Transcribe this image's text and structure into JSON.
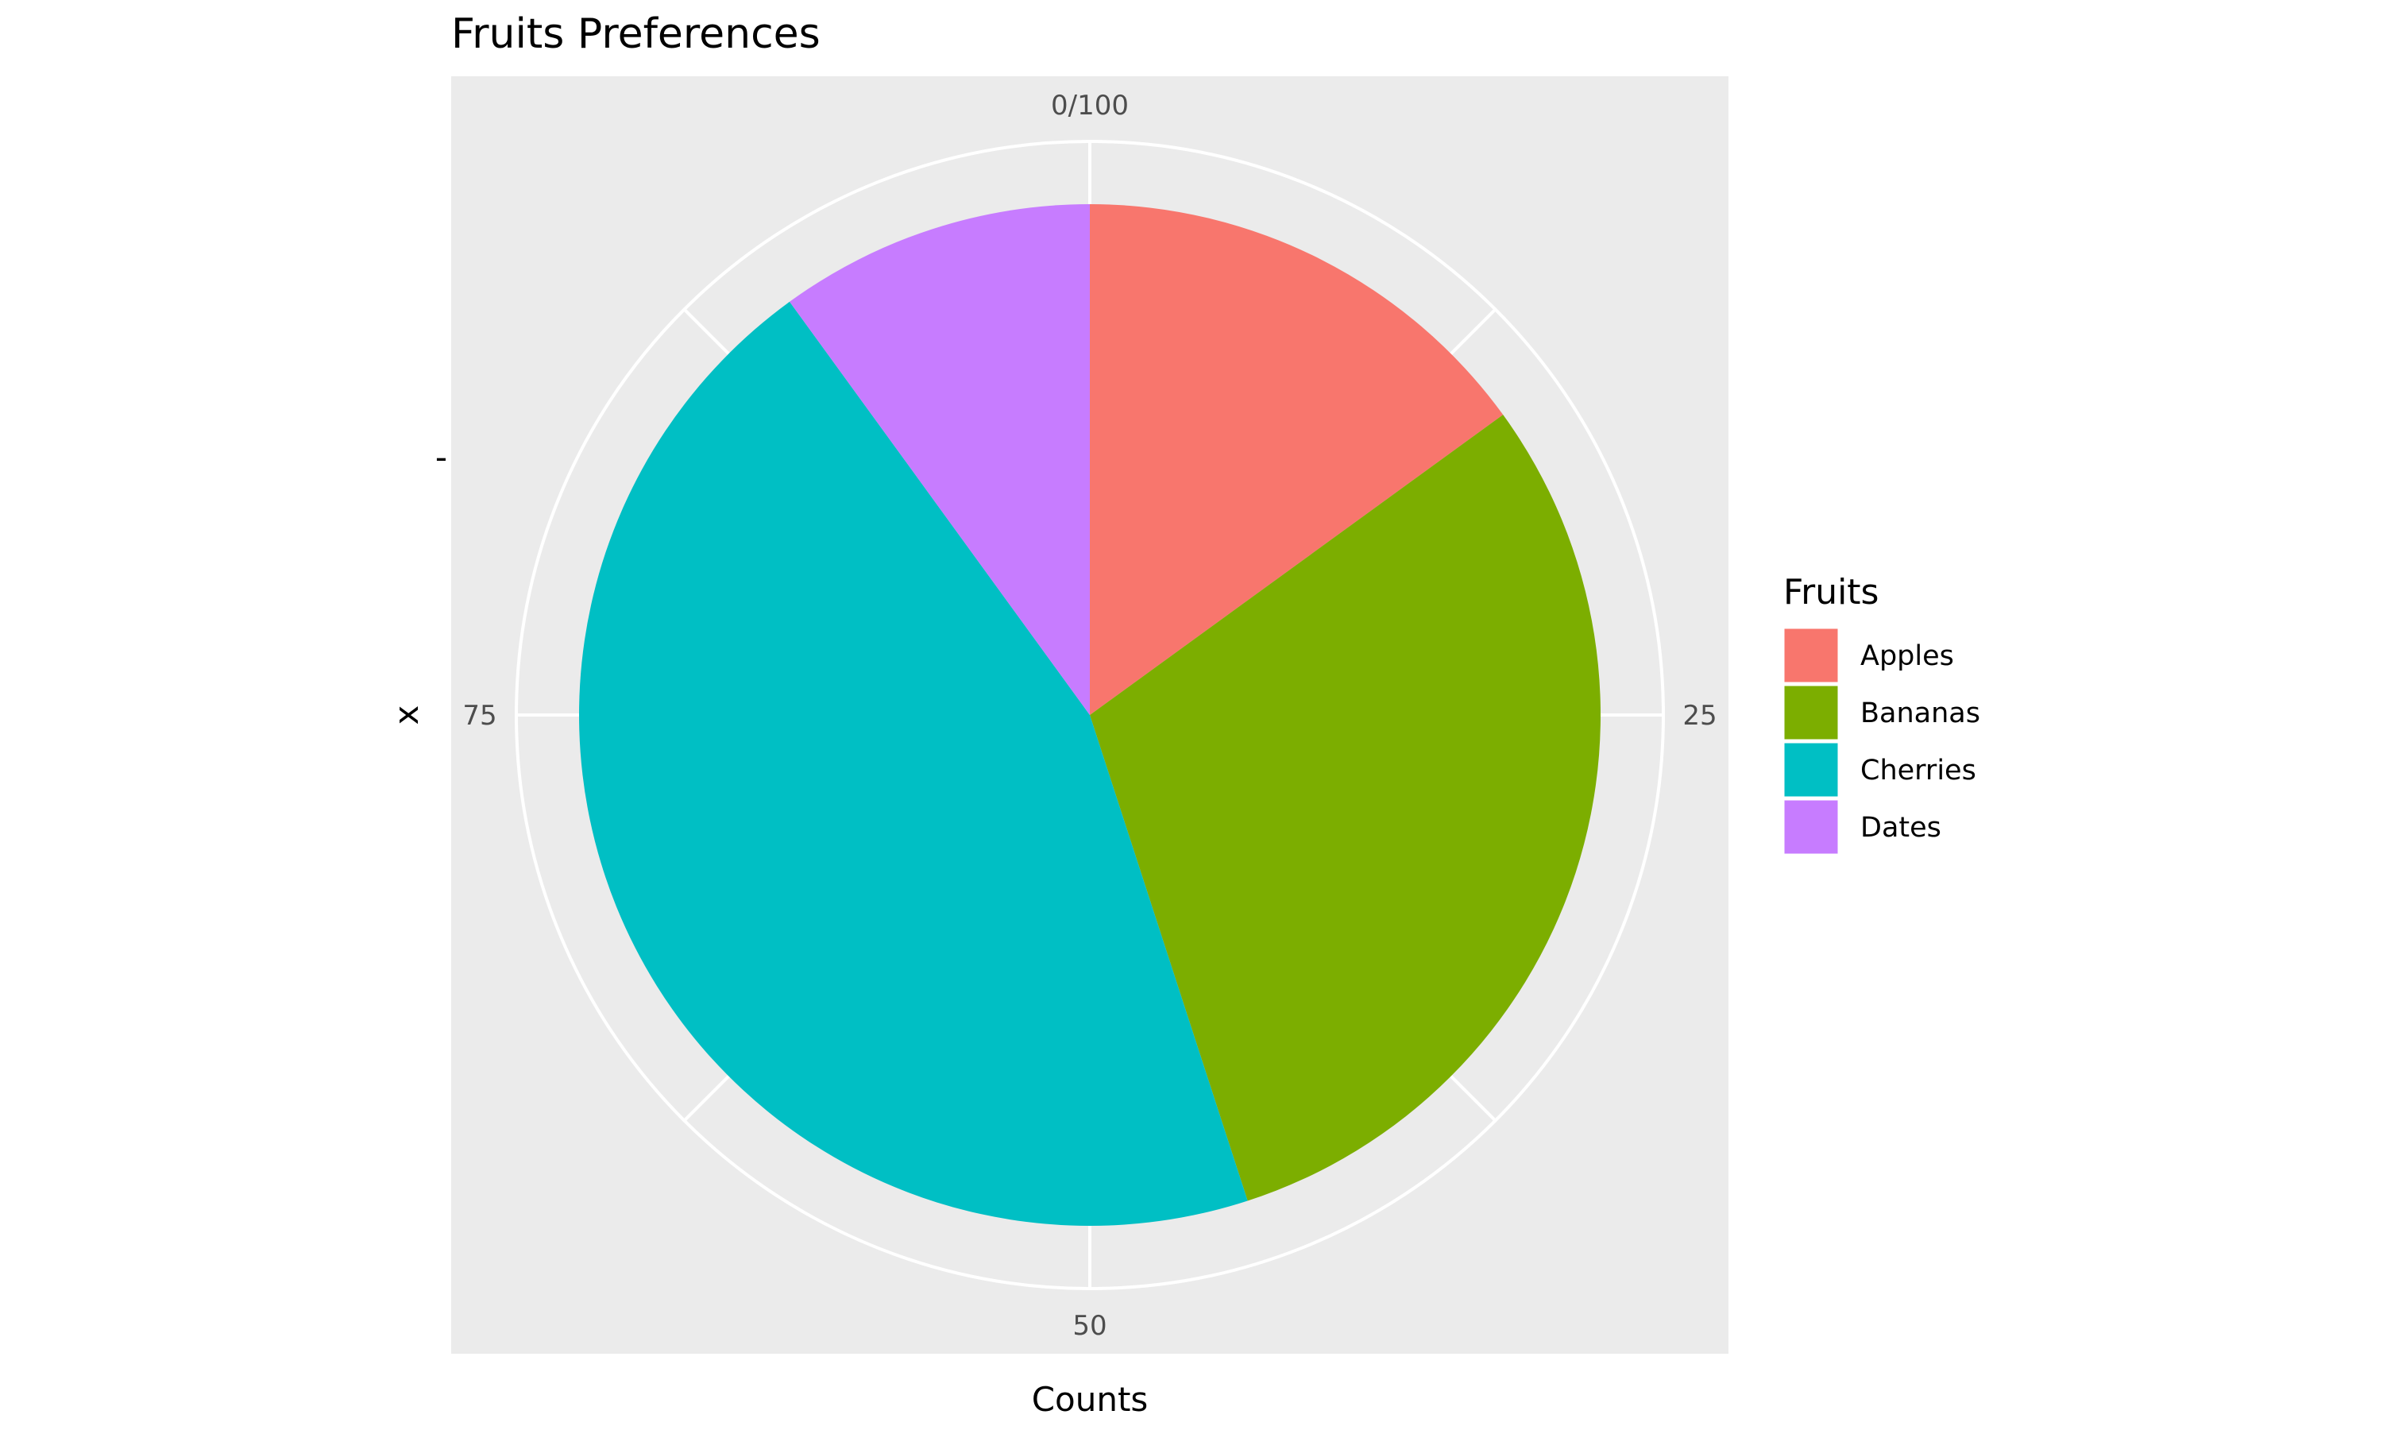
{
  "chart_data": {
    "type": "pie",
    "title": "Fruits Preferences",
    "xlabel": "Counts",
    "ylabel": "x",
    "y_tick_label": "-",
    "categories": [
      "Apples",
      "Bananas",
      "Cherries",
      "Dates"
    ],
    "values": [
      15,
      30,
      45,
      10
    ],
    "colors": [
      "#F8766D",
      "#7CAE00",
      "#00BFC4",
      "#C77CFF"
    ],
    "theta_ticks": [
      {
        "value": 0,
        "label": "0/100"
      },
      {
        "value": 25,
        "label": "25"
      },
      {
        "value": 50,
        "label": "50"
      },
      {
        "value": 75,
        "label": "75"
      }
    ],
    "theta_range": [
      0,
      100
    ],
    "direction": "clockwise",
    "start_angle": "top",
    "panel_background": "#EBEBEB",
    "grid": true,
    "legend": {
      "title": "Fruits",
      "position": "right",
      "items": [
        "Apples",
        "Bananas",
        "Cherries",
        "Dates"
      ]
    }
  }
}
